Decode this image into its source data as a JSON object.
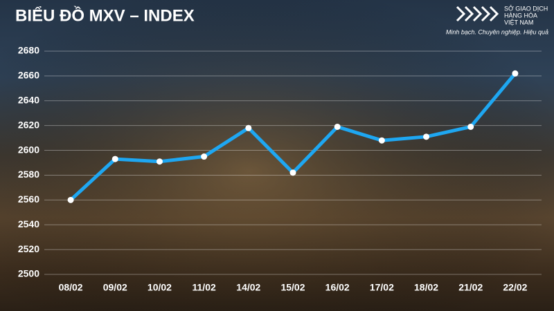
{
  "header": {
    "logo_lines": [
      "SỞ GIAO DỊCH",
      "HÀNG HÓA",
      "VIỆT NAM"
    ],
    "tagline": "Minh bạch. Chuyên nghiệp. Hiệu quả"
  },
  "chart_data": {
    "type": "line",
    "title": "BIỂU ĐỒ MXV – INDEX",
    "categories": [
      "08/02",
      "09/02",
      "10/02",
      "11/02",
      "14/02",
      "15/02",
      "16/02",
      "17/02",
      "18/02",
      "21/02",
      "22/02"
    ],
    "values": [
      2560,
      2593,
      2591,
      2595,
      2618,
      2582,
      2619,
      2608,
      2611,
      2619,
      2662
    ],
    "color": "#1ea7f2",
    "ylim": [
      2500,
      2680
    ],
    "yticks": [
      2500,
      2520,
      2540,
      2560,
      2580,
      2600,
      2620,
      2640,
      2660,
      2680
    ],
    "grid": true
  }
}
